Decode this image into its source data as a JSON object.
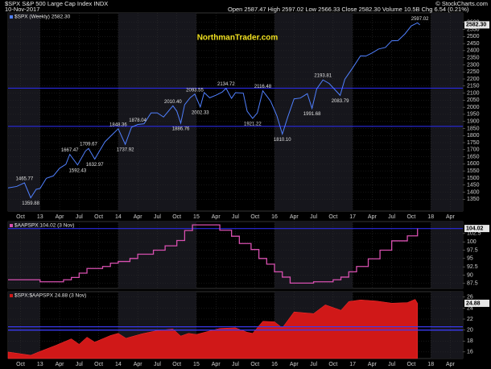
{
  "header": {
    "symbol_line": "$SPX S&P 500 Large Cap Index INDX",
    "date": "10-Nov-2017",
    "quote": "Open 2587.47 High 2597.02 Low 2566.33 Close 2582.30 Volume 10.5B Chg 6.54 (0.21%)",
    "credit": "© StockCharts.com"
  },
  "chart_data": [
    {
      "type": "line",
      "legend": "$SPX (Weekly) 2582.30",
      "watermark": "NorthmanTrader.com",
      "color": "#5080ff",
      "x": [
        2012.59,
        2012.7,
        2012.8,
        2012.88,
        2012.95,
        2013.0,
        2013.08,
        2013.17,
        2013.25,
        2013.33,
        2013.38,
        2013.48,
        2013.58,
        2013.62,
        2013.7,
        2013.75,
        2013.83,
        2013.92,
        2014.0,
        2014.09,
        2014.17,
        2014.25,
        2014.33,
        2014.42,
        2014.5,
        2014.58,
        2014.7,
        2014.75,
        2014.8,
        2014.85,
        2014.92,
        2014.98,
        2015.05,
        2015.1,
        2015.17,
        2015.25,
        2015.33,
        2015.38,
        2015.45,
        2015.5,
        2015.6,
        2015.65,
        2015.72,
        2015.78,
        2015.85,
        2015.9,
        2015.95,
        2016.03,
        2016.1,
        2016.17,
        2016.25,
        2016.33,
        2016.42,
        2016.48,
        2016.54,
        2016.62,
        2016.7,
        2016.77,
        2016.84,
        2016.9,
        2016.95,
        2017.0,
        2017.1,
        2017.17,
        2017.25,
        2017.33,
        2017.42,
        2017.5,
        2017.58,
        2017.67,
        2017.75,
        2017.83,
        2017.86
      ],
      "values": [
        1430,
        1440,
        1466,
        1360,
        1420,
        1426,
        1498,
        1515,
        1569,
        1597,
        1667,
        1592,
        1690,
        1709,
        1633,
        1681,
        1756,
        1805,
        1848,
        1738,
        1859,
        1878,
        1883,
        1960,
        1960,
        1931,
        2010,
        1972,
        1887,
        2018,
        2067,
        2093,
        2002,
        2104,
        2067,
        2085,
        2107,
        2134,
        2063,
        2103,
        2100,
        1972,
        1921,
        1960,
        2116,
        2080,
        2043,
        1940,
        1810,
        1932,
        2059,
        2065,
        2096,
        1992,
        2130,
        2193,
        2168,
        2126,
        2084,
        2198,
        2238,
        2278,
        2363,
        2362,
        2384,
        2411,
        2423,
        2470,
        2471,
        2519,
        2575,
        2597,
        2582
      ],
      "xlim": [
        2012.59,
        2018.41
      ],
      "xticks": [
        {
          "value": 2012.75,
          "label": "Oct"
        },
        {
          "value": 2013,
          "label": "13"
        },
        {
          "value": 2013.25,
          "label": "Apr"
        },
        {
          "value": 2013.5,
          "label": "Jul"
        },
        {
          "value": 2013.75,
          "label": "Oct"
        },
        {
          "value": 2014,
          "label": "14"
        },
        {
          "value": 2014.25,
          "label": "Apr"
        },
        {
          "value": 2014.5,
          "label": "Jul"
        },
        {
          "value": 2014.75,
          "label": "Oct"
        },
        {
          "value": 2015,
          "label": "15"
        },
        {
          "value": 2015.25,
          "label": "Apr"
        },
        {
          "value": 2015.5,
          "label": "Jul"
        },
        {
          "value": 2015.75,
          "label": "Oct"
        },
        {
          "value": 2016,
          "label": "16"
        },
        {
          "value": 2016.25,
          "label": "Apr"
        },
        {
          "value": 2016.5,
          "label": "Jul"
        },
        {
          "value": 2016.75,
          "label": "Oct"
        },
        {
          "value": 2017,
          "label": "17"
        },
        {
          "value": 2017.25,
          "label": "Apr"
        },
        {
          "value": 2017.5,
          "label": "Jul"
        },
        {
          "value": 2017.75,
          "label": "Oct"
        },
        {
          "value": 2018,
          "label": "18"
        },
        {
          "value": 2018.25,
          "label": "Apr"
        }
      ],
      "ylim": [
        1266,
        2667
      ],
      "yticks": [
        1350,
        1400,
        1450,
        1500,
        1550,
        1600,
        1650,
        1700,
        1750,
        1800,
        1850,
        1900,
        1950,
        2000,
        2050,
        2100,
        2150,
        2200,
        2250,
        2300,
        2350,
        2400,
        2450,
        2500,
        2550,
        2600
      ],
      "hlines": [
        2135,
        1865
      ],
      "hline_color": "#2a2ae0",
      "last": {
        "value": 2582.3,
        "label": "2582.30"
      },
      "annotations": [
        {
          "x": 2012.8,
          "value": 1465.77,
          "label": "1465.77"
        },
        {
          "x": 2012.88,
          "value": 1359.88,
          "label": "1359.88"
        },
        {
          "x": 2013.38,
          "value": 1667.47,
          "label": "1667.47"
        },
        {
          "x": 2013.48,
          "value": 1592.43,
          "label": "1592.43"
        },
        {
          "x": 2013.62,
          "value": 1709.67,
          "label": "1709.67"
        },
        {
          "x": 2013.7,
          "value": 1632.97,
          "label": "1632.97"
        },
        {
          "x": 2014.0,
          "value": 1848.36,
          "label": "1848.36"
        },
        {
          "x": 2014.09,
          "value": 1737.92,
          "label": "1737.92"
        },
        {
          "x": 2014.25,
          "value": 1878.04,
          "label": "1878.04"
        },
        {
          "x": 2014.7,
          "value": 2010.4,
          "label": "2010.40"
        },
        {
          "x": 2014.8,
          "value": 1886.76,
          "label": "1886.76"
        },
        {
          "x": 2015.05,
          "value": 2002.33,
          "label": "2002.33"
        },
        {
          "x": 2014.98,
          "value": 2093.55,
          "label": "2093.55"
        },
        {
          "x": 2015.38,
          "value": 2134.72,
          "label": "2134.72"
        },
        {
          "x": 2015.85,
          "value": 2116.48,
          "label": "2116.48"
        },
        {
          "x": 2015.72,
          "value": 1921.22,
          "label": "1921.22"
        },
        {
          "x": 2016.1,
          "value": 1810.1,
          "label": "1810.10"
        },
        {
          "x": 2016.62,
          "value": 2193.81,
          "label": "2193.81"
        },
        {
          "x": 2016.48,
          "value": 1991.68,
          "label": "1991.68"
        },
        {
          "x": 2016.84,
          "value": 2083.79,
          "label": "2083.79"
        },
        {
          "x": 2017.86,
          "value": 2597.02,
          "label": "2597.02"
        }
      ]
    },
    {
      "type": "step",
      "legend": "$AAPSPX 104.02 (3 Nov)",
      "color": "#d850b0",
      "x": [
        2012.59,
        2013.0,
        2013.3,
        2013.4,
        2013.5,
        2013.6,
        2013.8,
        2013.9,
        2014.0,
        2014.15,
        2014.25,
        2014.45,
        2014.6,
        2014.75,
        2014.85,
        2014.95,
        2015.3,
        2015.45,
        2015.55,
        2015.7,
        2015.8,
        2015.9,
        2016.0,
        2016.1,
        2016.2,
        2016.5,
        2016.75,
        2016.85,
        2016.95,
        2017.05,
        2017.2,
        2017.35,
        2017.5,
        2017.7,
        2017.83
      ],
      "values": [
        88.6,
        88.0,
        88.6,
        89.3,
        90.6,
        92,
        92.6,
        93.6,
        94.1,
        95.0,
        96.3,
        97.5,
        98.8,
        100.4,
        103.4,
        105.1,
        103.5,
        101.7,
        99.5,
        97.7,
        95.0,
        93.3,
        91.0,
        89.4,
        87.6,
        88.0,
        88.6,
        89.4,
        91.0,
        92.6,
        94.9,
        97.5,
        100.3,
        101.8,
        104.02
      ],
      "xlim": [
        2012.59,
        2018.41
      ],
      "ylim": [
        86,
        106.1
      ],
      "yticks": [
        87.5,
        90,
        92.5,
        95,
        97.5,
        100,
        102.5
      ],
      "hlines": [
        104
      ],
      "hline_color": "#2a2ae0",
      "last": {
        "value": 104.02,
        "label": "104.02"
      }
    },
    {
      "type": "area",
      "legend": "$SPX:$AAPSPX 24.88 (3 Nov)",
      "color": "#d01818",
      "x": [
        2012.59,
        2012.88,
        2013.0,
        2013.2,
        2013.4,
        2013.5,
        2013.6,
        2013.7,
        2013.9,
        2014.0,
        2014.1,
        2014.3,
        2014.5,
        2014.7,
        2014.8,
        2014.9,
        2015.0,
        2015.3,
        2015.5,
        2015.65,
        2015.72,
        2015.85,
        2016.0,
        2016.1,
        2016.25,
        2016.5,
        2016.65,
        2016.85,
        2016.95,
        2017.1,
        2017.3,
        2017.5,
        2017.7,
        2017.8,
        2017.83
      ],
      "values": [
        16.0,
        15.4,
        16.1,
        17.2,
        18.4,
        17.4,
        18.7,
        17.8,
        19.0,
        19.4,
        18.5,
        19.3,
        19.9,
        20.2,
        18.9,
        19.4,
        19.2,
        20.3,
        20.4,
        19.6,
        19.4,
        21.6,
        21.5,
        20.4,
        23.3,
        23.0,
        24.6,
        23.6,
        25.2,
        25.5,
        25.3,
        24.9,
        25.0,
        25.6,
        24.88
      ],
      "xlim": [
        2012.59,
        2018.41
      ],
      "xticks": [
        {
          "value": 2012.75,
          "label": "Oct"
        },
        {
          "value": 2013,
          "label": "13"
        },
        {
          "value": 2013.25,
          "label": "Apr"
        },
        {
          "value": 2013.5,
          "label": "Jul"
        },
        {
          "value": 2013.75,
          "label": "Oct"
        },
        {
          "value": 2014,
          "label": "14"
        },
        {
          "value": 2014.25,
          "label": "Apr"
        },
        {
          "value": 2014.5,
          "label": "Jul"
        },
        {
          "value": 2014.75,
          "label": "Oct"
        },
        {
          "value": 2015,
          "label": "15"
        },
        {
          "value": 2015.25,
          "label": "Apr"
        },
        {
          "value": 2015.5,
          "label": "Jul"
        },
        {
          "value": 2015.75,
          "label": "Oct"
        },
        {
          "value": 2016,
          "label": "16"
        },
        {
          "value": 2016.25,
          "label": "Apr"
        },
        {
          "value": 2016.5,
          "label": "Jul"
        },
        {
          "value": 2016.75,
          "label": "Oct"
        },
        {
          "value": 2017,
          "label": "17"
        },
        {
          "value": 2017.25,
          "label": "Apr"
        },
        {
          "value": 2017.5,
          "label": "Jul"
        },
        {
          "value": 2017.75,
          "label": "Oct"
        },
        {
          "value": 2018,
          "label": "18"
        },
        {
          "value": 2018.25,
          "label": "Apr"
        }
      ],
      "ylim": [
        14.8,
        27.0
      ],
      "yticks": [
        16,
        18,
        20,
        22,
        24,
        26
      ],
      "hlines": [
        20.6,
        20.0
      ],
      "hline_color": "#3a3af0",
      "last": {
        "value": 24.88,
        "label": "24.88"
      }
    }
  ]
}
